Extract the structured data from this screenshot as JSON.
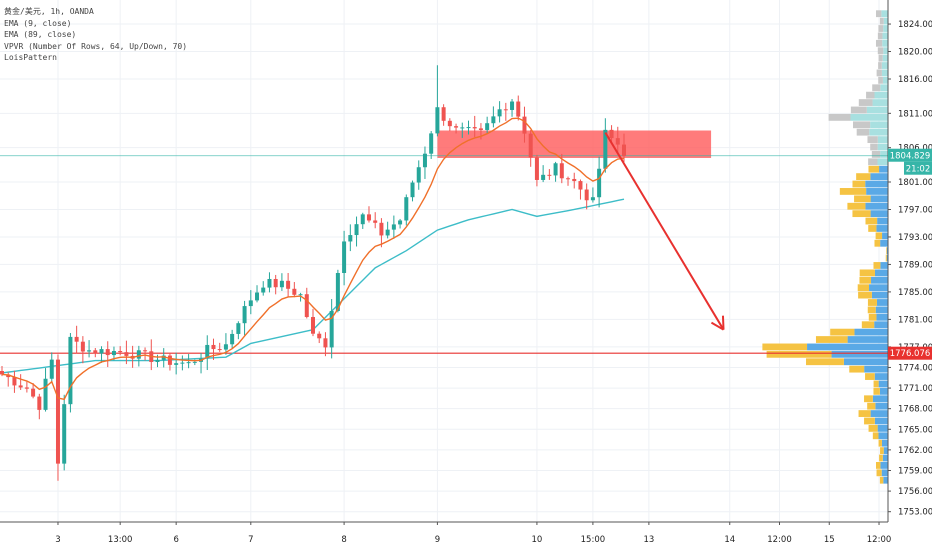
{
  "legend": {
    "symbol_line": "黄金/美元, 1h, OANDA",
    "ema9": "EMA (9, close)",
    "ema89": "EMA (89, close)",
    "vpvr": "VPVR (Number Of Rows, 64, Up/Down, 70)",
    "pattern": "LoisPattern"
  },
  "chart_data": {
    "type": "candlestick",
    "symbol": "黄金/美元",
    "interval": "1h",
    "source": "OANDA",
    "ylim": [
      1751.5,
      1827.5
    ],
    "y_ticks": [
      "1824.000",
      "1820.000",
      "1816.000",
      "1811.000",
      "1806.000",
      "1801.000",
      "1797.000",
      "1793.000",
      "1789.000",
      "1785.000",
      "1781.000",
      "1777.000",
      "1774.000",
      "1771.000",
      "1768.000",
      "1765.000",
      "1762.000",
      "1759.000",
      "1756.000",
      "1753.000"
    ],
    "x_ticks": [
      {
        "label": "3",
        "bar": 9
      },
      {
        "label": "13:00",
        "bar": 19
      },
      {
        "label": "6",
        "bar": 28
      },
      {
        "label": "7",
        "bar": 40
      },
      {
        "label": "8",
        "bar": 55
      },
      {
        "label": "9",
        "bar": 70
      },
      {
        "label": "10",
        "bar": 86
      },
      {
        "label": "15:00",
        "bar": 95
      },
      {
        "label": "13",
        "bar": 104
      },
      {
        "label": "14",
        "bar": 117
      },
      {
        "label": "12:00",
        "bar": 125
      },
      {
        "label": "15",
        "bar": 133
      },
      {
        "label": "12:00",
        "bar": 141
      }
    ],
    "anchors": [
      [
        0,
        1773
      ],
      [
        4,
        1771
      ],
      [
        6,
        1768.5
      ],
      [
        8,
        1775
      ],
      [
        9,
        1760
      ],
      [
        11,
        1778
      ],
      [
        14,
        1776.5
      ],
      [
        20,
        1776.2
      ],
      [
        26,
        1775
      ],
      [
        30,
        1774.5
      ],
      [
        33,
        1776.5
      ],
      [
        36,
        1777.3
      ],
      [
        38,
        1781
      ],
      [
        40,
        1784
      ],
      [
        42,
        1786.3
      ],
      [
        45,
        1786
      ],
      [
        48,
        1784.5
      ],
      [
        50,
        1778.5
      ],
      [
        52,
        1777.5
      ],
      [
        55,
        1793
      ],
      [
        58,
        1796
      ],
      [
        61,
        1793.5
      ],
      [
        64,
        1795.5
      ],
      [
        66,
        1801
      ],
      [
        68,
        1805.5
      ],
      [
        70,
        1811.5
      ],
      [
        73,
        1808.5
      ],
      [
        77,
        1808
      ],
      [
        80,
        1811.5
      ],
      [
        82,
        1813
      ],
      [
        84,
        1808.5
      ],
      [
        86,
        1801
      ],
      [
        89,
        1803
      ],
      [
        92,
        1801
      ],
      [
        95,
        1798
      ],
      [
        97,
        1808
      ],
      [
        99,
        1806.5
      ],
      [
        100,
        1804.8
      ]
    ],
    "ema89_anchors": [
      [
        0,
        1773.2
      ],
      [
        15,
        1775
      ],
      [
        25,
        1775
      ],
      [
        36,
        1775.5
      ],
      [
        40,
        1777.5
      ],
      [
        50,
        1779.5
      ],
      [
        55,
        1784
      ],
      [
        60,
        1788.5
      ],
      [
        65,
        1791
      ],
      [
        70,
        1794
      ],
      [
        75,
        1795.5
      ],
      [
        82,
        1797
      ],
      [
        86,
        1796
      ],
      [
        92,
        1797
      ],
      [
        100,
        1798.5
      ]
    ],
    "last_price": {
      "label": "1804.829",
      "value": 1804.829,
      "color": "#36b5a8"
    },
    "countdown": "21:02",
    "support_line": {
      "label": "1776.076",
      "value": 1776.076,
      "color": "#e8312f"
    },
    "resistance_zone": {
      "from_bar": 70,
      "to_bar": 114,
      "low": 1804.5,
      "high": 1808.5,
      "color": "#ff5a5a"
    },
    "projection_arrow": {
      "from": [
        97,
        1808.2
      ],
      "to": [
        116,
        1779.5
      ],
      "color": "#e8312f"
    },
    "colors": {
      "up": "#26a69a",
      "down": "#ef5350",
      "ema9": "#f0702a",
      "ema89": "#3dbdc8",
      "vp_up": "#5aa9e6",
      "vp_down": "#f5c343",
      "vp_va_up": "#a8e0e0",
      "vp_va_down": "#c8c8c8"
    }
  }
}
